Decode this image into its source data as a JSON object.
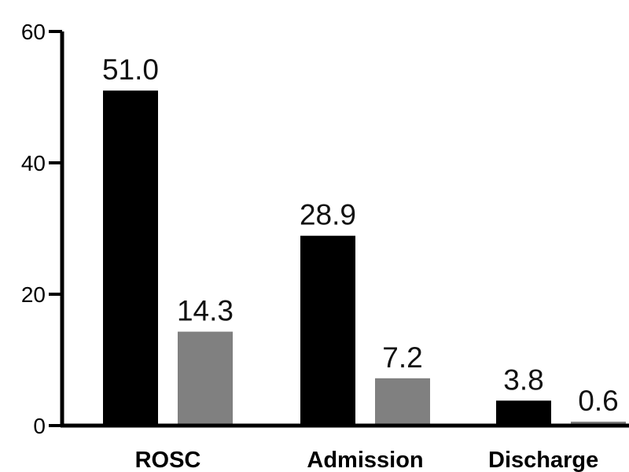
{
  "chart_data": {
    "type": "bar",
    "categories": [
      "ROSC",
      "Admission",
      "Discharge"
    ],
    "series": [
      {
        "values": [
          51.0,
          28.9,
          3.8
        ],
        "color": "#000000"
      },
      {
        "values": [
          14.3,
          7.2,
          0.6
        ],
        "color": "#808080"
      }
    ],
    "data_labels": [
      [
        "51.0",
        "28.9",
        "3.8"
      ],
      [
        "14.3",
        "7.2",
        "0.6"
      ]
    ],
    "yticks": [
      0,
      20,
      40,
      60
    ],
    "ylim": [
      0,
      60
    ],
    "grid": false,
    "legend": "none"
  }
}
